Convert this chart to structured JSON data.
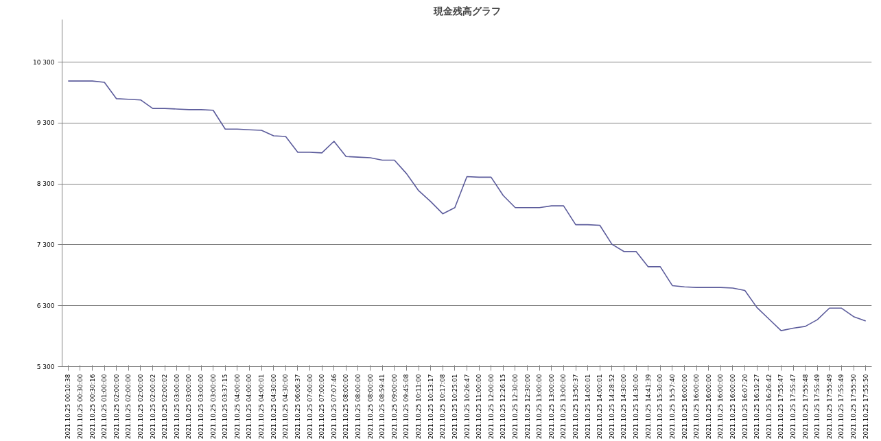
{
  "chart_data": {
    "type": "line",
    "title": "現金残高グラフ",
    "categories": [
      "2021.10.25 00:10:38",
      "2021.10.25 00:30:00",
      "2021.10.25 00:30:16",
      "2021.10.25 01:00:00",
      "2021.10.25 02:00:00",
      "2021.10.25 02:00:00",
      "2021.10.25 02:00:00",
      "2021.10.25 02:00:02",
      "2021.10.25 02:00:02",
      "2021.10.25 03:00:00",
      "2021.10.25 03:00:00",
      "2021.10.25 03:00:00",
      "2021.10.25 03:00:00",
      "2021.10.25 03:37:15",
      "2021.10.25 04:00:00",
      "2021.10.25 04:00:00",
      "2021.10.25 04:00:01",
      "2021.10.25 04:30:00",
      "2021.10.25 04:30:00",
      "2021.10.25 06:06:37",
      "2021.10.25 07:00:00",
      "2021.10.25 07:00:00",
      "2021.10.25 07:07:46",
      "2021.10.25 08:00:00",
      "2021.10.25 08:00:00",
      "2021.10.25 08:00:00",
      "2021.10.25 08:59:41",
      "2021.10.25 09:00:00",
      "2021.10.25 09:45:08",
      "2021.10.25 10:11:00",
      "2021.10.25 10:13:17",
      "2021.10.25 10:17:08",
      "2021.10.25 10:25:01",
      "2021.10.25 10:26:47",
      "2021.10.25 11:00:00",
      "2021.10.25 12:00:00",
      "2021.10.25 12:26:15",
      "2021.10.25 12:30:00",
      "2021.10.25 12:30:00",
      "2021.10.25 13:00:00",
      "2021.10.25 13:00:00",
      "2021.10.25 13:00:00",
      "2021.10.25 13:50:37",
      "2021.10.25 14:00:01",
      "2021.10.25 14:00:01",
      "2021.10.25 14:28:52",
      "2021.10.25 14:30:00",
      "2021.10.25 14:30:00",
      "2021.10.25 14:41:39",
      "2021.10.25 15:30:00",
      "2021.10.25 15:57:40",
      "2021.10.25 16:00:00",
      "2021.10.25 16:00:00",
      "2021.10.25 16:00:00",
      "2021.10.25 16:00:00",
      "2021.10.25 16:00:00",
      "2021.10.25 16:07:20",
      "2021.10.25 16:19:27",
      "2021.10.25 16:26:42",
      "2021.10.25 17:55:47",
      "2021.10.25 17:55:47",
      "2021.10.25 17:55:48",
      "2021.10.25 17:55:49",
      "2021.10.25 17:55:49",
      "2021.10.25 17:55:49",
      "2021.10.25 17:55:50",
      "2021.10.25 17:55:50"
    ],
    "series": [
      {
        "color": "#5b5b9b",
        "values": [
          9990,
          9990,
          9990,
          9970,
          9700,
          9690,
          9680,
          9540,
          9540,
          9530,
          9520,
          9520,
          9510,
          9200,
          9200,
          9190,
          9180,
          9090,
          9080,
          8820,
          8820,
          8810,
          9000,
          8750,
          8740,
          8730,
          8690,
          8690,
          8470,
          8190,
          8010,
          7810,
          7910,
          8420,
          8410,
          8410,
          8110,
          7910,
          7910,
          7910,
          7940,
          7940,
          7630,
          7630,
          7620,
          7310,
          7190,
          7190,
          6940,
          6940,
          6630,
          6610,
          6600,
          6600,
          6600,
          6590,
          6550,
          6270,
          6080,
          5890,
          5930,
          5960,
          6070,
          6260,
          6260,
          6120,
          6050
        ]
      }
    ],
    "ylim": [
      5300,
      11000
    ],
    "yticks": [
      {
        "value": 5300,
        "label": "5 300"
      },
      {
        "value": 6300,
        "label": "6 300"
      },
      {
        "value": 7300,
        "label": "7 300"
      },
      {
        "value": 8300,
        "label": "8 300"
      },
      {
        "value": 9300,
        "label": "9 300"
      },
      {
        "value": 10300,
        "label": "10 300"
      }
    ],
    "grid": "y",
    "marker": "none",
    "line_style": "solid"
  }
}
